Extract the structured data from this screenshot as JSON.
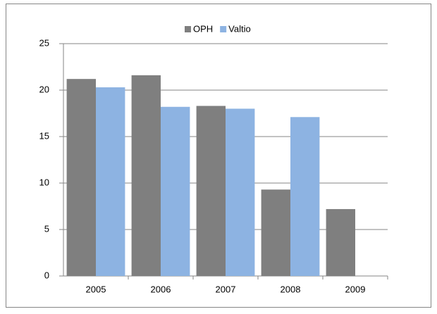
{
  "chart_data": {
    "type": "bar",
    "categories": [
      "2005",
      "2006",
      "2007",
      "2008",
      "2009"
    ],
    "series": [
      {
        "name": "OPH",
        "color": "#7f7f7f",
        "values": [
          21.2,
          21.6,
          18.3,
          9.3,
          7.2
        ]
      },
      {
        "name": "Valtio",
        "color": "#8db3e2",
        "values": [
          20.3,
          18.2,
          18.0,
          17.1,
          null
        ]
      }
    ],
    "ylim": [
      0,
      25
    ],
    "yticks": [
      0,
      5,
      10,
      15,
      20,
      25
    ],
    "grid": true,
    "legend": "top"
  }
}
